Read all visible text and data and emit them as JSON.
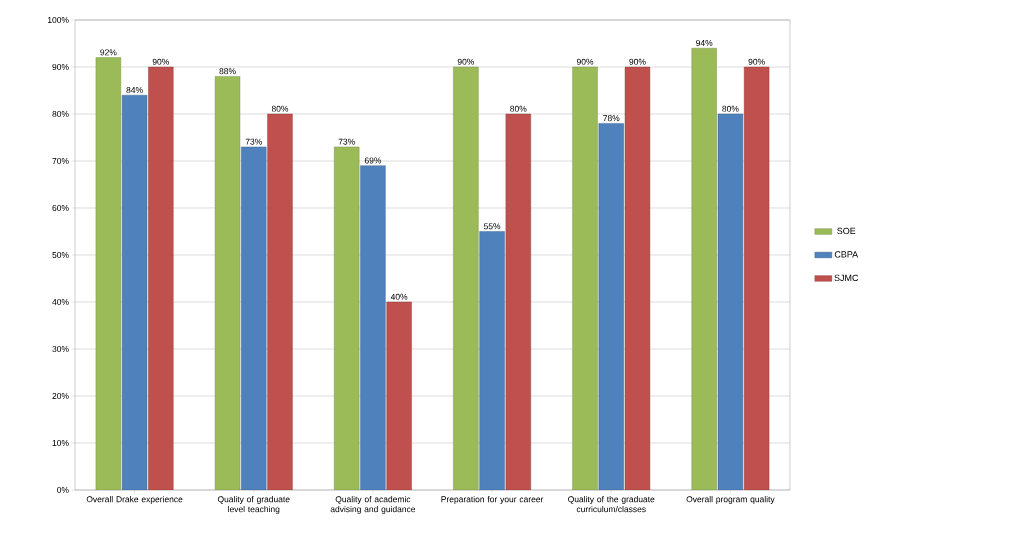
{
  "chart_data": {
    "type": "bar",
    "categories": [
      "Overall Drake experience",
      "Quality of graduate level teaching",
      "Quality of academic advising and guidance",
      "Preparation for your career",
      "Quality of the graduate curriculum/classes",
      "Overall program quality"
    ],
    "series": [
      {
        "name": "SOE",
        "color": "#9bbb59",
        "values": [
          92,
          88,
          73,
          90,
          90,
          94
        ],
        "value_labels": [
          "92%",
          "88%",
          "73%",
          "90%",
          "90%",
          "94%"
        ]
      },
      {
        "name": "CBPA",
        "color": "#4f81bd",
        "values": [
          84,
          73,
          69,
          55,
          78,
          80
        ],
        "value_labels": [
          "84%",
          "73%",
          "69%",
          "55%",
          "78%",
          "80%"
        ]
      },
      {
        "name": "SJMC",
        "color": "#c0504d",
        "values": [
          90,
          80,
          40,
          80,
          90,
          90
        ],
        "value_labels": [
          "90%",
          "80%",
          "40%",
          "80%",
          "90%",
          "90%"
        ]
      }
    ],
    "ylim": [
      0,
      100
    ],
    "yticks": [
      {
        "value": 0,
        "label": "0%"
      },
      {
        "value": 10,
        "label": "10%"
      },
      {
        "value": 20,
        "label": "20%"
      },
      {
        "value": 30,
        "label": "30%"
      },
      {
        "value": 40,
        "label": "40%"
      },
      {
        "value": 50,
        "label": "50%"
      },
      {
        "value": 60,
        "label": "60%"
      },
      {
        "value": 70,
        "label": "70%"
      },
      {
        "value": 80,
        "label": "80%"
      },
      {
        "value": 90,
        "label": "90%"
      },
      {
        "value": 100,
        "label": "100%"
      }
    ],
    "grid": "y",
    "legend": "right"
  }
}
